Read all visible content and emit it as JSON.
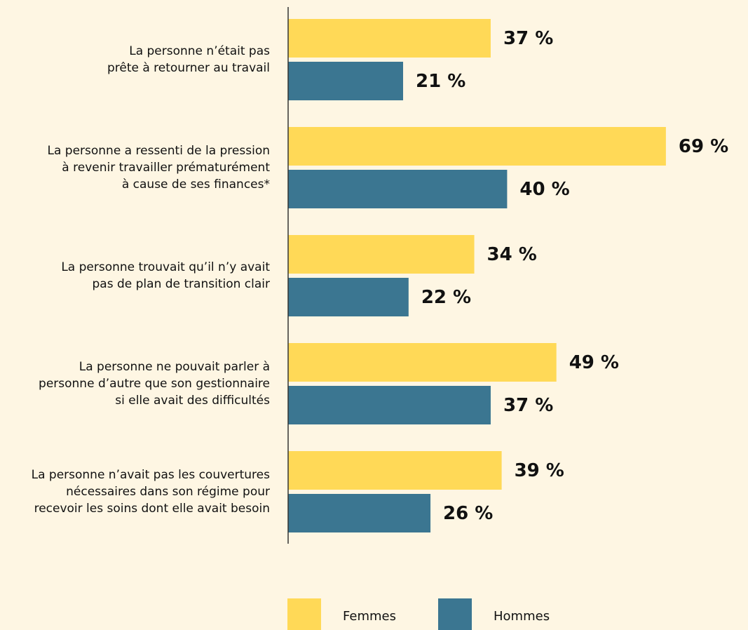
{
  "chart_data": {
    "type": "barh",
    "categories": [
      [
        "La personne n’était pas",
        "prête à retourner au travail"
      ],
      [
        "La personne a ressenti de la pression",
        "à revenir travailler prématurément",
        "à cause de ses finances*"
      ],
      [
        "La personne trouvait qu’il n’y avait",
        "pas de plan de transition clair"
      ],
      [
        "La personne ne pouvait parler à",
        "personne d’autre que son gestionnaire",
        "si elle avait des difficultés"
      ],
      [
        "La personne n’avait pas les couvertures",
        "nécessaires dans son régime pour",
        "recevoir les soins dont elle avait besoin"
      ]
    ],
    "series": [
      {
        "name": "Femmes",
        "color": "#FFD957",
        "values": [
          37,
          69,
          34,
          49,
          39
        ],
        "value_labels": [
          "37 %",
          "69 %",
          "34 %",
          "49 %",
          "39 %"
        ]
      },
      {
        "name": "Hommes",
        "color": "#3B7691",
        "values": [
          21,
          40,
          22,
          37,
          26
        ],
        "value_labels": [
          "21 %",
          "40 %",
          "22 %",
          "37 %",
          "26 %"
        ]
      }
    ],
    "xlim": [
      0,
      100
    ],
    "legend": "bottom"
  }
}
